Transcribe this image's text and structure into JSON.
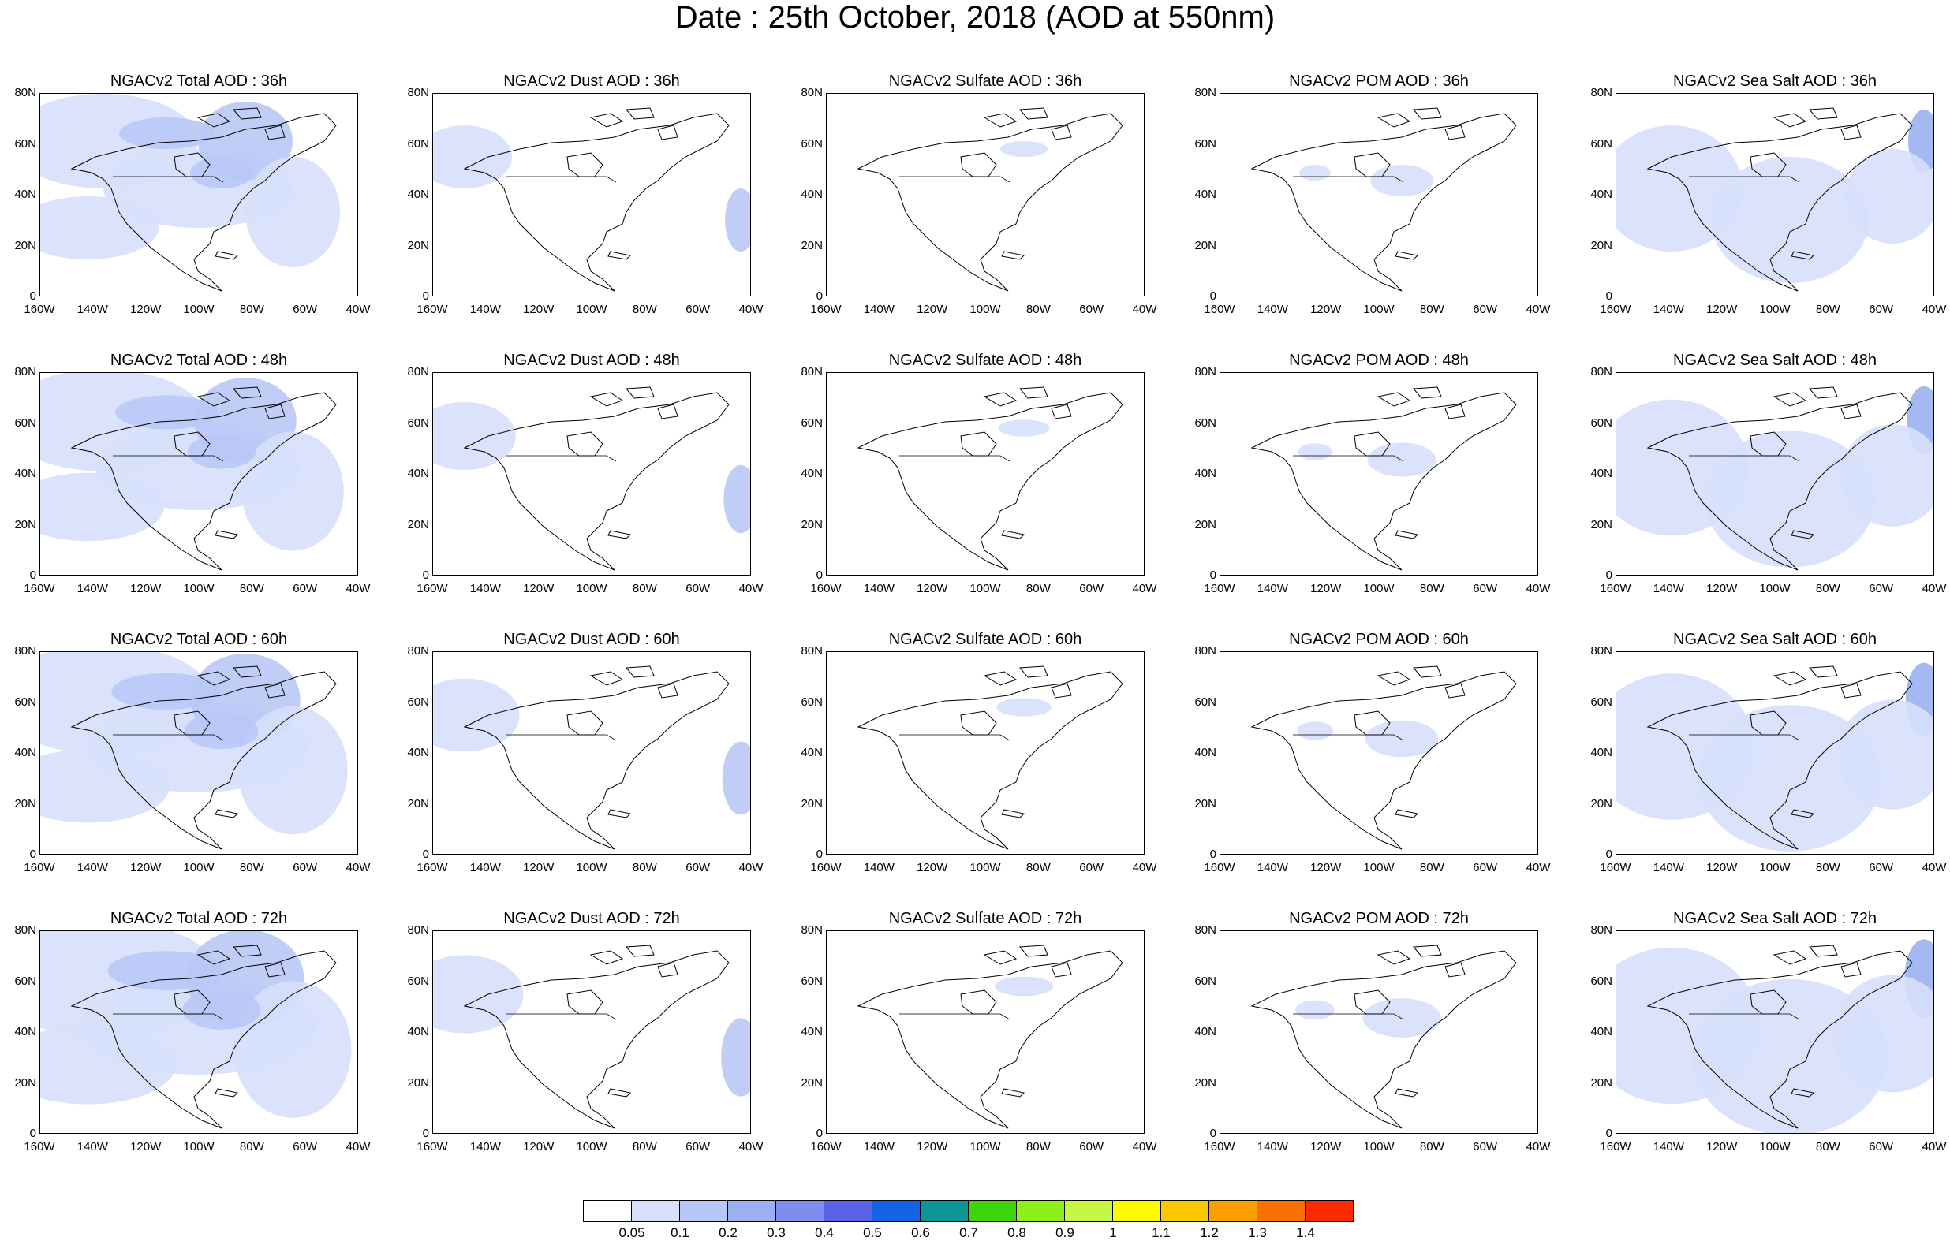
{
  "title": "Date : 25th October, 2018 (AOD at 550nm)",
  "panels": [
    [
      "NGACv2 Total AOD : 36h",
      "NGACv2 Dust AOD : 36h",
      "NGACv2 Sulfate AOD : 36h",
      "NGACv2 POM AOD : 36h",
      "NGACv2 Sea Salt AOD : 36h"
    ],
    [
      "NGACv2 Total AOD : 48h",
      "NGACv2 Dust AOD : 48h",
      "NGACv2 Sulfate AOD : 48h",
      "NGACv2 POM AOD : 48h",
      "NGACv2 Sea Salt AOD : 48h"
    ],
    [
      "NGACv2 Total AOD : 60h",
      "NGACv2 Dust AOD : 60h",
      "NGACv2 Sulfate AOD : 60h",
      "NGACv2 POM AOD : 60h",
      "NGACv2 Sea Salt AOD : 60h"
    ],
    [
      "NGACv2 Total AOD : 72h",
      "NGACv2 Dust AOD : 72h",
      "NGACv2 Sulfate AOD : 72h",
      "NGACv2 POM AOD : 72h",
      "NGACv2 Sea Salt  AOD : 72h"
    ]
  ],
  "axes": {
    "lat_ticks": [
      "80N",
      "60N",
      "40N",
      "20N",
      "0"
    ],
    "lon_ticks": [
      "160W",
      "140W",
      "120W",
      "100W",
      "80W",
      "60W",
      "40W"
    ]
  },
  "colorbar": {
    "labels": [
      "0.05",
      "0.1",
      "0.2",
      "0.3",
      "0.4",
      "0.5",
      "0.6",
      "0.7",
      "0.8",
      "0.9",
      "1",
      "1.1",
      "1.2",
      "1.3",
      "1.4"
    ],
    "colors": [
      "#ffffff",
      "#d6e0fb",
      "#b8c8f6",
      "#9ab0f1",
      "#7d8eee",
      "#5a62e8",
      "#1463e6",
      "#0d9696",
      "#3ed40c",
      "#8ef01a",
      "#c5f545",
      "#fbfb00",
      "#fbc800",
      "#fb9e00",
      "#fb6e00",
      "#fb2a00"
    ]
  }
}
